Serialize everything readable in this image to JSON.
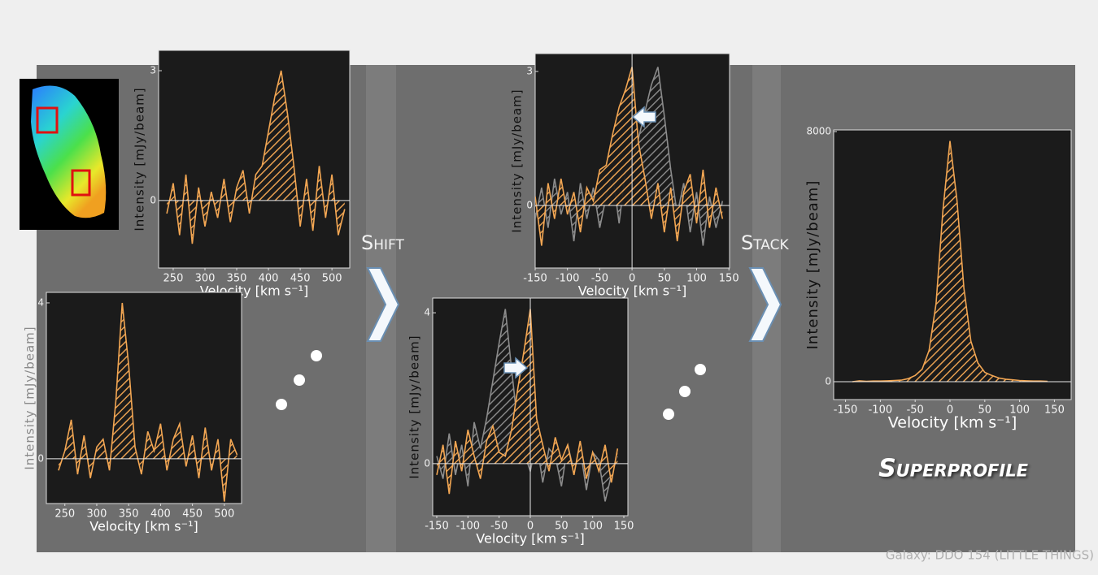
{
  "chart_data": [
    {
      "type": "line",
      "x_label": "Velocity [km s⁻¹]",
      "y_label": "Intensity [mJy/beam]",
      "x": [
        240,
        250,
        260,
        270,
        280,
        290,
        300,
        310,
        320,
        330,
        340,
        350,
        360,
        370,
        380,
        390,
        400,
        410,
        420,
        430,
        440,
        450,
        460,
        470,
        480,
        490,
        500,
        510,
        520
      ],
      "series": [
        {
          "color": "#f2a653",
          "values": [
            -0.3,
            0.4,
            -0.8,
            0.6,
            -1.0,
            0.3,
            -0.6,
            0.2,
            -0.4,
            0.5,
            -0.5,
            0.3,
            0.7,
            -0.3,
            0.6,
            0.8,
            1.6,
            2.4,
            3.0,
            2.0,
            0.8,
            -0.6,
            0.5,
            -0.7,
            0.8,
            -0.4,
            0.6,
            -0.8,
            -0.2
          ]
        }
      ],
      "xlim": [
        227,
        528
      ],
      "ylim": [
        -1.56,
        3.47
      ],
      "xticks": [
        250,
        300,
        350,
        400,
        450,
        500
      ],
      "yticks": [
        0,
        3
      ]
    },
    {
      "type": "line",
      "x_label": "Velocity [km s⁻¹]",
      "y_label": "Intensity [mJy/beam]",
      "x": [
        240,
        250,
        260,
        270,
        280,
        290,
        300,
        310,
        320,
        330,
        340,
        350,
        360,
        370,
        380,
        390,
        400,
        410,
        420,
        430,
        440,
        450,
        460,
        470,
        480,
        490,
        500,
        510,
        520
      ],
      "series": [
        {
          "color": "#f2a653",
          "values": [
            -0.3,
            0.2,
            1.0,
            -0.4,
            0.6,
            -0.5,
            0.3,
            0.5,
            -0.3,
            1.5,
            4.0,
            2.4,
            0.3,
            -0.4,
            0.7,
            0.2,
            0.9,
            -0.3,
            0.5,
            0.9,
            -0.2,
            0.6,
            -0.5,
            0.8,
            -0.3,
            0.5,
            -1.1,
            0.5,
            0.1
          ]
        }
      ],
      "xlim": [
        221,
        527
      ],
      "ylim": [
        -1.15,
        4.27
      ],
      "xticks": [
        250,
        300,
        350,
        400,
        450,
        500
      ],
      "yticks": [
        0,
        4
      ]
    },
    {
      "type": "line",
      "x_label": "Velocity [km s⁻¹]",
      "y_label": "Intensity [mJy/beam]",
      "x": [
        -150,
        -140,
        -130,
        -120,
        -110,
        -100,
        -90,
        -80,
        -70,
        -60,
        -50,
        -40,
        -30,
        -20,
        -10,
        0,
        10,
        20,
        30,
        40,
        50,
        60,
        70,
        80,
        90,
        100,
        110,
        120,
        130,
        140
      ],
      "series": [
        {
          "color": "#8c8c8c",
          "values": [
            -0.3,
            0.4,
            -0.5,
            0.6,
            -0.2,
            0.3,
            -0.8,
            0.5,
            -0.3,
            0.4,
            -0.5,
            0.2,
            0.7,
            -0.4,
            0.8,
            0.9,
            1.5,
            2.1,
            2.7,
            3.1,
            2.0,
            0.8,
            -0.2,
            0.5,
            -0.6,
            0.3,
            -0.9,
            0.2,
            -0.5,
            0.1
          ]
        },
        {
          "color": "#f2a653",
          "values": [
            0.2,
            -0.9,
            0.5,
            -0.3,
            0.6,
            -0.2,
            0.3,
            -0.6,
            0.4,
            0.1,
            0.8,
            0.9,
            1.6,
            2.2,
            2.6,
            3.1,
            1.4,
            0.6,
            -0.3,
            0.5,
            -0.6,
            0.4,
            -0.8,
            0.3,
            0.7,
            -0.4,
            0.8,
            -0.5,
            0.4,
            -0.3
          ]
        }
      ],
      "reference_x": 0,
      "xlim": [
        -150,
        151
      ],
      "ylim": [
        -1.4,
        3.4
      ],
      "xticks": [
        -150,
        -100,
        -50,
        0,
        50,
        100,
        150
      ],
      "yticks": [
        0,
        3
      ]
    },
    {
      "type": "line",
      "x_label": "Velocity [km s⁻¹]",
      "y_label": "Intensity [mJy/beam]",
      "x": [
        -150,
        -140,
        -130,
        -120,
        -110,
        -100,
        -90,
        -80,
        -70,
        -60,
        -50,
        -40,
        -30,
        -20,
        -10,
        0,
        10,
        20,
        30,
        40,
        50,
        60,
        70,
        80,
        90,
        100,
        110,
        120,
        130,
        140
      ],
      "series": [
        {
          "color": "#8c8c8c",
          "values": [
            0.2,
            -0.4,
            0.8,
            -0.3,
            0.5,
            -0.6,
            1.1,
            0.4,
            1.2,
            2.2,
            3.2,
            4.1,
            2.5,
            1.0,
            0.3,
            -0.2,
            0.6,
            -0.5,
            0.4,
            0.2,
            -0.6,
            0.5,
            -0.2,
            0.4,
            -0.7,
            0.3,
            0.1,
            -1.0,
            -0.3,
            0.2
          ]
        },
        {
          "color": "#f2a653",
          "values": [
            -0.3,
            0.5,
            -0.8,
            0.6,
            -0.2,
            0.9,
            0.2,
            -0.4,
            0.6,
            1.0,
            0.3,
            0.2,
            0.9,
            2.0,
            3.0,
            4.1,
            1.2,
            0.5,
            -0.2,
            0.7,
            0.1,
            0.5,
            -0.3,
            0.6,
            -0.4,
            0.3,
            -0.2,
            0.5,
            -0.5,
            0.4
          ]
        }
      ],
      "reference_x": 0,
      "xlim": [
        -156.5,
        156.5
      ],
      "ylim": [
        -1.38,
        4.39
      ],
      "xticks": [
        -150,
        -100,
        -50,
        0,
        50,
        100,
        150
      ],
      "yticks": [
        0,
        4
      ]
    },
    {
      "type": "line",
      "x_label": "Velocity [km s⁻¹]",
      "y_label": "Intensity [mJy/beam]",
      "x": [
        -140,
        -130,
        -120,
        -110,
        -100,
        -90,
        -80,
        -70,
        -60,
        -50,
        -40,
        -30,
        -20,
        -10,
        0,
        10,
        20,
        30,
        40,
        50,
        60,
        70,
        80,
        90,
        100,
        110,
        120,
        130,
        140
      ],
      "series": [
        {
          "color": "#f2a653",
          "values": [
            0,
            30,
            10,
            20,
            20,
            30,
            40,
            50,
            100,
            200,
            400,
            1000,
            2500,
            5500,
            7700,
            5800,
            3000,
            1300,
            600,
            300,
            200,
            120,
            80,
            60,
            40,
            30,
            20,
            20,
            10
          ]
        }
      ],
      "xlim": [
        -167,
        174
      ],
      "ylim": [
        -571,
        8052
      ],
      "xticks": [
        -150,
        -100,
        -50,
        0,
        50,
        100,
        150
      ],
      "yticks": [
        0,
        8000
      ]
    }
  ],
  "steps": {
    "shift": "Shift",
    "stack": "Stack"
  },
  "result_label": "Superprofile",
  "credit": "Galaxy: DDO 154 (LITTLE THINGS)"
}
